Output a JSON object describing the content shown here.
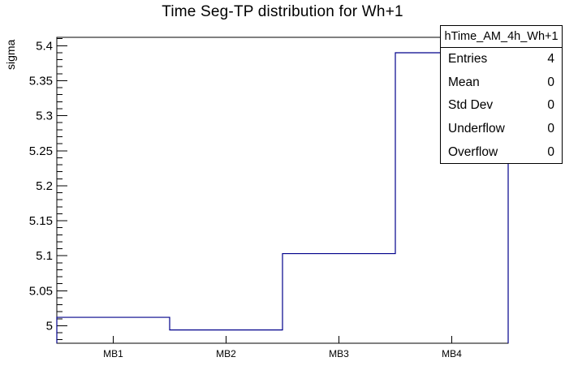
{
  "title": "Time Seg-TP distribution for Wh+1",
  "stats_box": {
    "header": "hTime_AM_4h_Wh+1",
    "rows": [
      {
        "label": "Entries",
        "value": "4"
      },
      {
        "label": "Mean",
        "value": "0"
      },
      {
        "label": "Std Dev",
        "value": "0"
      },
      {
        "label": "Underflow",
        "value": "0"
      },
      {
        "label": "Overflow",
        "value": "0"
      }
    ]
  },
  "chart_data": {
    "type": "bar",
    "subtype": "step-histogram-outline",
    "title": "Time Seg-TP distribution for Wh+1",
    "xlabel": "",
    "ylabel": "sigma",
    "categories": [
      "MB1",
      "MB2",
      "MB3",
      "MB4"
    ],
    "values": [
      5.012,
      4.994,
      5.103,
      5.39
    ],
    "ylim": [
      4.975,
      5.412
    ],
    "y_major_ticks": [
      5,
      5.05,
      5.1,
      5.15,
      5.2,
      5.25,
      5.3,
      5.35,
      5.4
    ],
    "y_tick_labels": [
      "5",
      "5.05",
      "5.1",
      "5.15",
      "5.2",
      "5.25",
      "5.3",
      "5.35",
      "5.4"
    ],
    "y_minor_step": 0.01,
    "grid": false,
    "legend": "none",
    "line_color": "#00008b",
    "frame_color": "#000000",
    "text_color": "#000000",
    "background": "#ffffff"
  }
}
